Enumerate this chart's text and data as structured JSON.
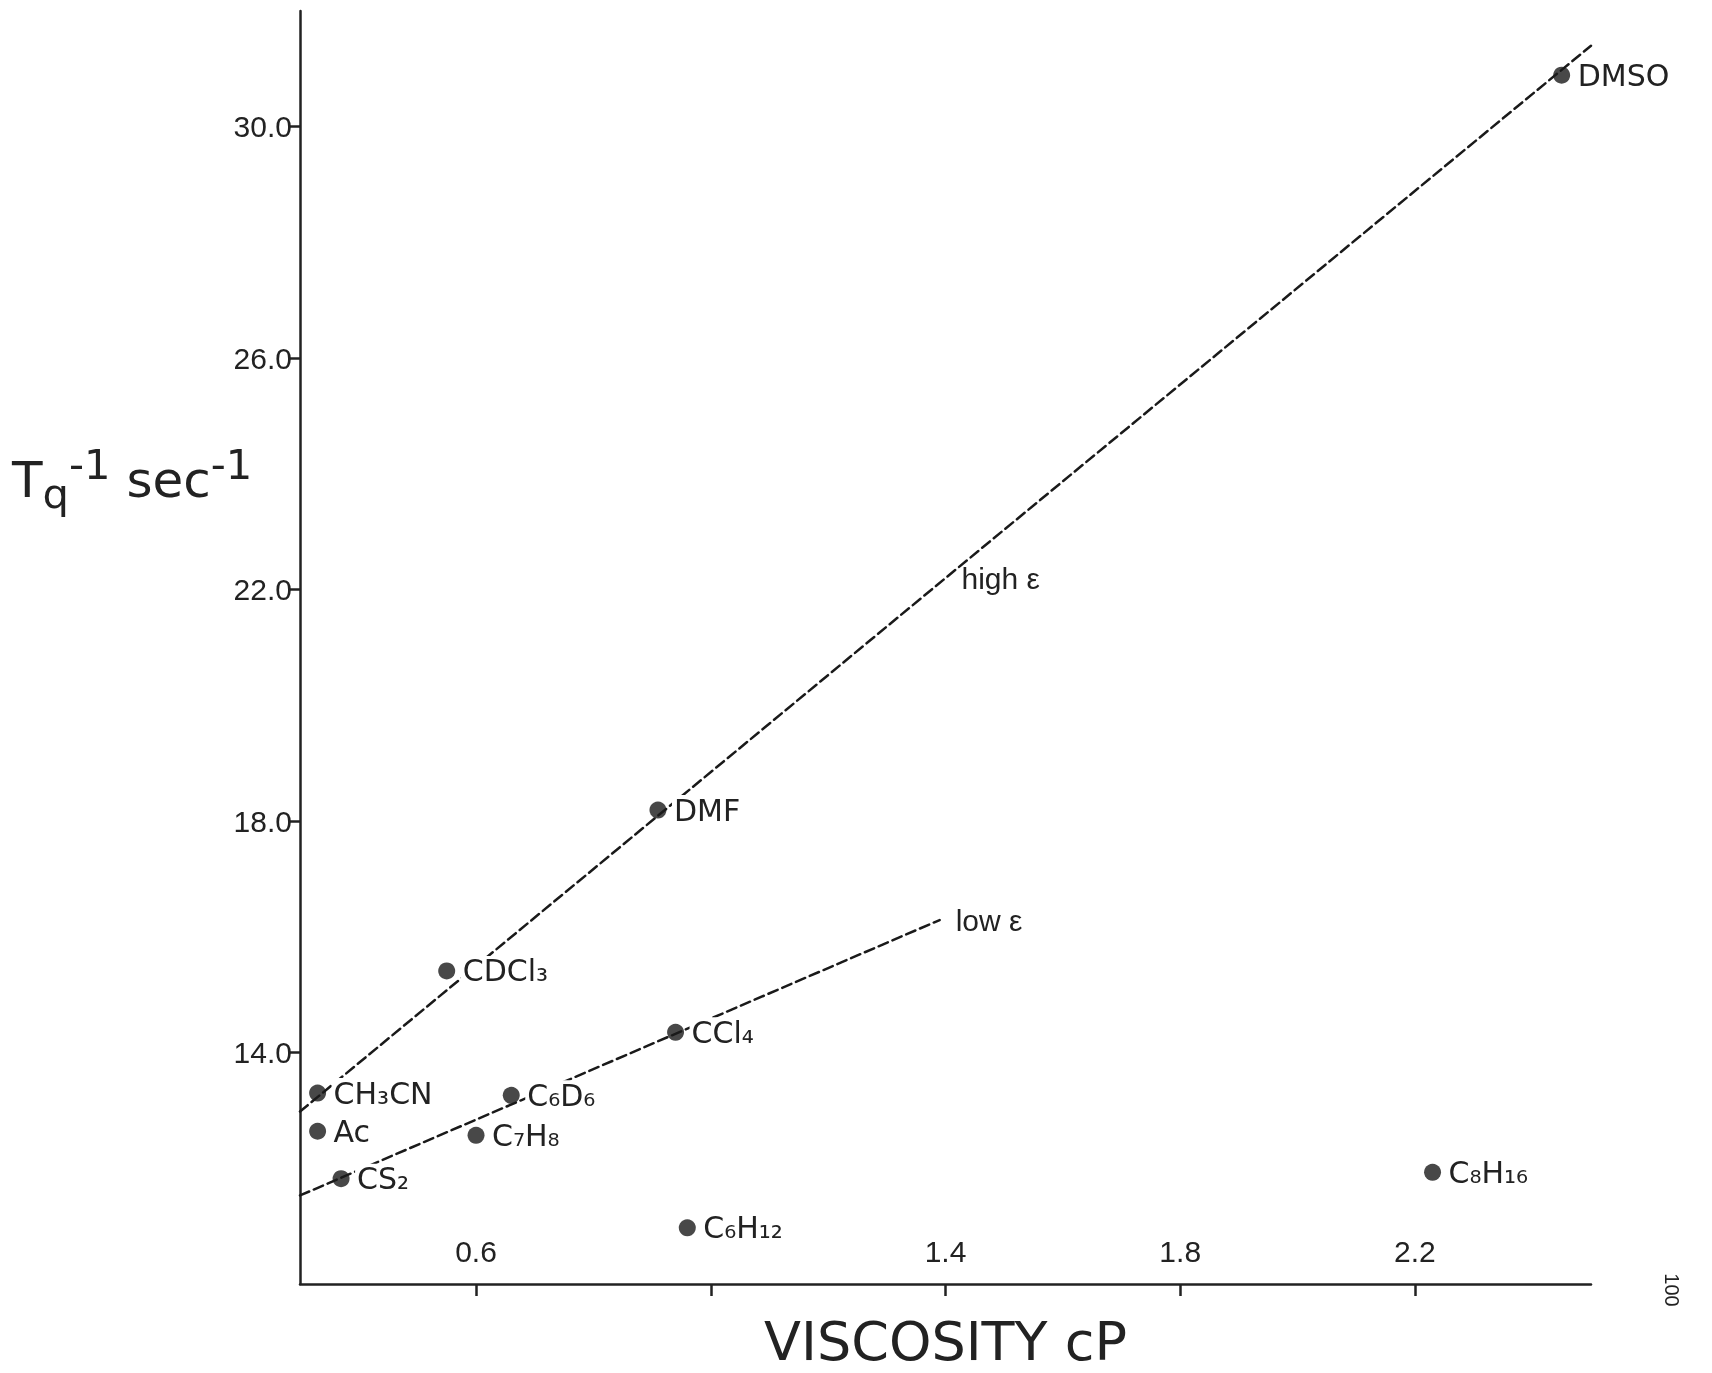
{
  "chart_data": {
    "type": "scatter",
    "xlabel": "VISCOSITY cP",
    "ylabel": "T$_{q}$$^{-1}$ sec$^{-1}$",
    "xlim": [
      0.3,
      2.5
    ],
    "xticks": [
      0.6,
      {
        "value": 1.0,
        "label": null
      },
      1.4,
      1.8,
      2.2
    ],
    "ylim": [
      10,
      32
    ],
    "yticks": [
      {
        "value": 14,
        "label": "14.0"
      },
      {
        "value": 18,
        "label": "18.0"
      },
      {
        "value": 22,
        "label": "22.0"
      },
      {
        "value": 26,
        "label": "26.0"
      },
      {
        "value": 30,
        "label": "30.0"
      }
    ],
    "grid": false,
    "legend": false,
    "series": [
      {
        "color": "#1a1a1a",
        "marker": "circle",
        "x": [
          0.33,
          0.33,
          0.37,
          0.6,
          0.66,
          0.55,
          0.94,
          0.91,
          0.96,
          2.23,
          2.45
        ],
        "values": [
          13.3,
          12.64,
          11.82,
          12.57,
          13.26,
          15.41,
          14.35,
          18.19,
          10.97,
          11.93,
          30.89
        ]
      },
      {
        "type": "line",
        "name": "high ε",
        "color": "#1a1a1a",
        "marker": "none",
        "line_style": "dashed",
        "x": [
          0.3,
          1.4,
          2.5
        ],
        "values": [
          12.98,
          22.2,
          31.4
        ]
      },
      {
        "type": "line",
        "name": "low ε",
        "color": "#1a1a1a",
        "marker": "none",
        "line_style": "dashed",
        "x": [
          0.3,
          1.39
        ],
        "values": [
          11.53,
          16.29
        ]
      }
    ],
    "annotations": [
      {
        "text": "CH₃CN",
        "x": 0.33,
        "y": 13.3
      },
      {
        "text": "Ac",
        "x": 0.33,
        "y": 12.64
      },
      {
        "text": "CS₂",
        "x": 0.37,
        "y": 11.82
      },
      {
        "text": "C₇H₈",
        "x": 0.6,
        "y": 12.57
      },
      {
        "text": "C₆D₆",
        "x": 0.66,
        "y": 13.26
      },
      {
        "text": "CDCl₃",
        "x": 0.55,
        "y": 15.41
      },
      {
        "text": "CCl₄",
        "x": 0.94,
        "y": 14.35
      },
      {
        "text": "DMF",
        "x": 0.91,
        "y": 18.19
      },
      {
        "text": "C₆H₁₂",
        "x": 0.96,
        "y": 10.97
      },
      {
        "text": "C₈H₁₆",
        "x": 2.23,
        "y": 11.93
      },
      {
        "text": "DMSO",
        "x": 2.45,
        "y": 30.89
      },
      "100"
    ]
  }
}
